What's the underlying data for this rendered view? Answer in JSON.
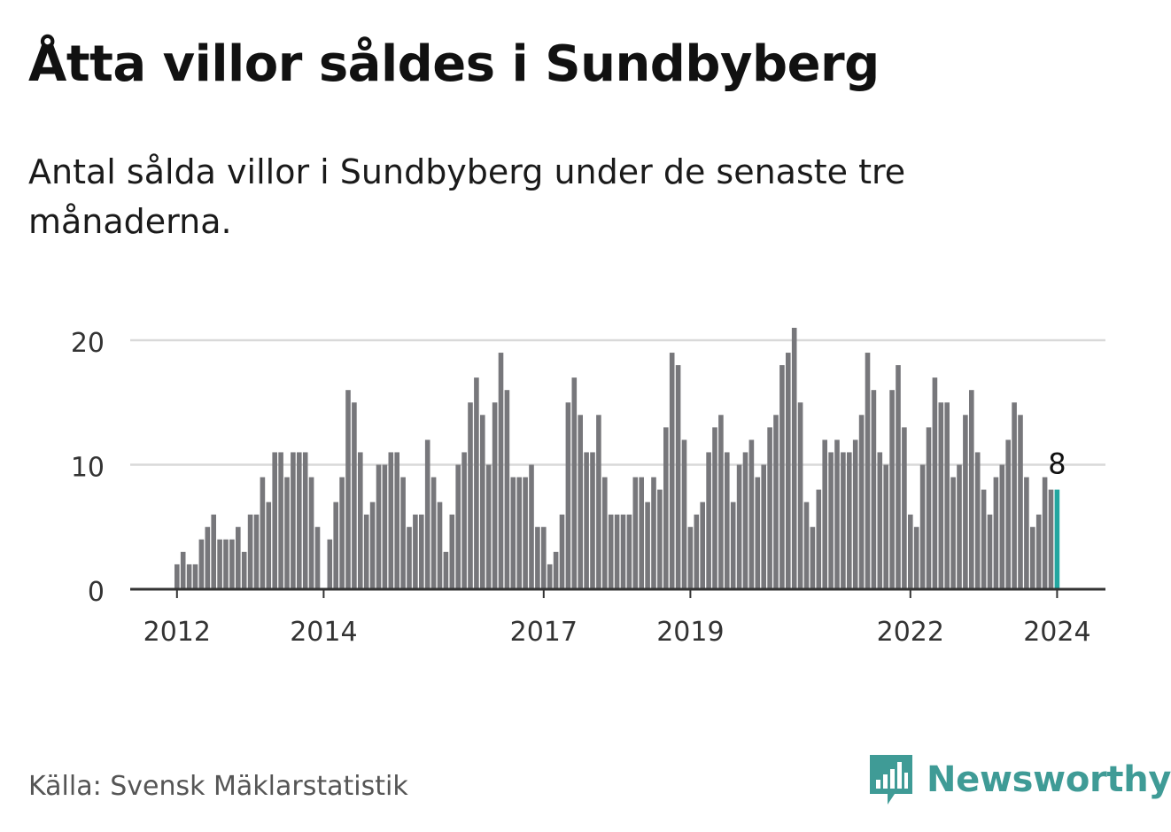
{
  "title": "Åtta villor såldes i Sundbyberg",
  "subtitle": "Antal sålda villor i Sundbyberg under de senaste tre månaderna.",
  "source": "Källa: Svensk Mäklarstatistik",
  "brand": {
    "name": "Newsworthy",
    "icon": "newsworthy-bar-logo-icon"
  },
  "colors": {
    "bar": "#77777b",
    "highlight": "#23a6a0",
    "grid": "#d9d9d9",
    "axis": "#333333",
    "brand": "#3f9b96"
  },
  "chart_data": {
    "type": "bar",
    "title": "Åtta villor såldes i Sundbyberg",
    "xlabel": "",
    "ylabel": "",
    "ylim": [
      0,
      20
    ],
    "yticks": [
      0,
      10,
      20
    ],
    "start": "2012-01",
    "xticks": [
      {
        "label": "2012",
        "index": 0
      },
      {
        "label": "2014",
        "index": 24
      },
      {
        "label": "2017",
        "index": 60
      },
      {
        "label": "2019",
        "index": 84
      },
      {
        "label": "2022",
        "index": 120
      },
      {
        "label": "2024",
        "index": 144
      }
    ],
    "values": [
      2,
      3,
      2,
      2,
      4,
      5,
      6,
      4,
      4,
      4,
      5,
      3,
      6,
      6,
      9,
      7,
      11,
      11,
      9,
      11,
      11,
      11,
      9,
      5,
      0,
      4,
      7,
      9,
      16,
      15,
      11,
      6,
      7,
      10,
      10,
      11,
      11,
      9,
      5,
      6,
      6,
      12,
      9,
      7,
      3,
      6,
      10,
      11,
      15,
      17,
      14,
      10,
      15,
      19,
      16,
      9,
      9,
      9,
      10,
      5,
      5,
      2,
      3,
      6,
      15,
      17,
      14,
      11,
      11,
      14,
      9,
      6,
      6,
      6,
      6,
      9,
      9,
      7,
      9,
      8,
      13,
      19,
      18,
      12,
      5,
      6,
      7,
      11,
      13,
      14,
      11,
      7,
      10,
      11,
      12,
      9,
      10,
      13,
      14,
      18,
      19,
      21,
      15,
      7,
      5,
      8,
      12,
      11,
      12,
      11,
      11,
      12,
      14,
      19,
      16,
      11,
      10,
      16,
      18,
      13,
      6,
      5,
      10,
      13,
      17,
      15,
      15,
      9,
      10,
      14,
      16,
      11,
      8,
      6,
      9,
      10,
      12,
      15,
      14,
      9,
      5,
      6,
      9,
      8,
      8
    ],
    "highlight_index": 144,
    "highlight_label": "8"
  }
}
